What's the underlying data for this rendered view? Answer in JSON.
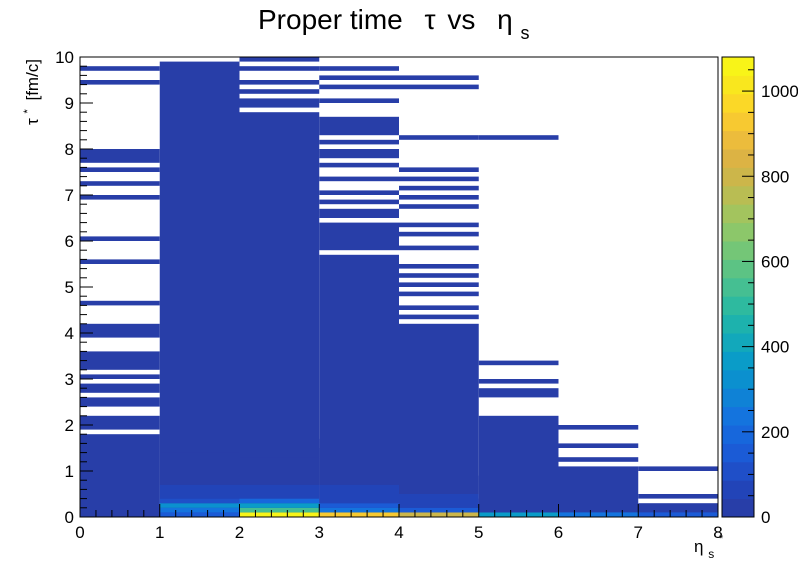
{
  "chart_data": {
    "type": "heatmap",
    "title": {
      "main": "Proper time",
      "tau": "τ",
      "vs": "vs",
      "eta": "η",
      "eta_sub": "s"
    },
    "xlabel": {
      "sym": "η",
      "sub": "s",
      "sup": "*"
    },
    "ylabel": {
      "sym": "τ",
      "sup": "*",
      "unit": "[fm/c]"
    },
    "xlim": [
      0,
      8
    ],
    "ylim": [
      0,
      10
    ],
    "x_ticks": [
      "0",
      "1",
      "2",
      "3",
      "4",
      "5",
      "6",
      "7",
      "8"
    ],
    "y_ticks": [
      "0",
      "1",
      "2",
      "3",
      "4",
      "5",
      "6",
      "7",
      "8",
      "9",
      "10"
    ],
    "x_bin_width": 1,
    "y_bin_width": 0.1,
    "colorbar": {
      "min": 0,
      "max": 1080,
      "ticks": [
        "0",
        "200",
        "400",
        "600",
        "800",
        "1000"
      ],
      "palette": [
        "#283ea8",
        "#2244b8",
        "#1f4fc8",
        "#1b5bd6",
        "#1767dc",
        "#1474de",
        "#0f82d6",
        "#0b90cf",
        "#0a9cc8",
        "#12a8bb",
        "#1db2ad",
        "#2eba9f",
        "#45bf92",
        "#5cc384",
        "#74c677",
        "#8cc76a",
        "#a3c45e",
        "#b9bd53",
        "#ccb64a",
        "#dcb344",
        "#ecbc3c",
        "#f7c931",
        "#fbd827",
        "#f9e71e",
        "#f8f418"
      ]
    },
    "columns": [
      {
        "x0": 0,
        "x1": 1,
        "filled": [
          [
            0,
            1.8
          ],
          [
            1.9,
            2.2
          ],
          [
            2.4,
            2.6
          ],
          [
            2.7,
            2.9
          ],
          [
            3.0,
            3.1
          ],
          [
            3.2,
            3.6
          ],
          [
            3.9,
            4.2
          ],
          [
            4.6,
            4.7
          ],
          [
            5.5,
            5.6
          ],
          [
            6.0,
            6.1
          ],
          [
            6.9,
            7.0
          ],
          [
            7.2,
            7.3
          ],
          [
            7.5,
            7.6
          ],
          [
            7.7,
            8.0
          ],
          [
            9.4,
            9.5
          ],
          [
            9.7,
            9.8
          ]
        ],
        "hot": []
      },
      {
        "x0": 1,
        "x1": 2,
        "filled": [
          [
            0,
            9.9
          ]
        ],
        "hot": [
          [
            0.0,
            0.1,
            140
          ],
          [
            0.1,
            0.2,
            230
          ],
          [
            0.2,
            0.3,
            330
          ],
          [
            0.3,
            0.4,
            120
          ],
          [
            0.4,
            0.7,
            60
          ],
          [
            0.7,
            1.0,
            40
          ],
          [
            1.0,
            1.4,
            25
          ],
          [
            1.4,
            1.9,
            15
          ]
        ]
      },
      {
        "x0": 2,
        "x1": 3,
        "filled": [
          [
            0,
            8.8
          ],
          [
            8.9,
            9.1
          ],
          [
            9.2,
            9.3
          ],
          [
            9.4,
            9.5
          ],
          [
            9.7,
            9.8
          ],
          [
            9.9,
            10.0
          ]
        ],
        "hot": [
          [
            0.0,
            0.1,
            1080
          ],
          [
            0.1,
            0.2,
            560
          ],
          [
            0.2,
            0.3,
            350
          ],
          [
            0.3,
            0.4,
            200
          ],
          [
            0.4,
            0.7,
            80
          ],
          [
            0.7,
            1.1,
            40
          ],
          [
            1.1,
            1.3,
            25
          ],
          [
            1.3,
            1.7,
            15
          ]
        ]
      },
      {
        "x0": 3,
        "x1": 4,
        "filled": [
          [
            0,
            5.7
          ],
          [
            5.8,
            6.4
          ],
          [
            6.5,
            6.7
          ],
          [
            6.8,
            6.9
          ],
          [
            7.0,
            7.1
          ],
          [
            7.3,
            7.4
          ],
          [
            7.6,
            7.7
          ],
          [
            7.8,
            8.0
          ],
          [
            8.1,
            8.2
          ],
          [
            8.3,
            8.7
          ],
          [
            9.0,
            9.1
          ],
          [
            9.3,
            9.4
          ],
          [
            9.5,
            9.6
          ],
          [
            9.7,
            9.8
          ]
        ],
        "hot": [
          [
            0.0,
            0.1,
            950
          ],
          [
            0.1,
            0.2,
            220
          ],
          [
            0.2,
            0.3,
            150
          ],
          [
            0.3,
            0.7,
            60
          ],
          [
            0.7,
            1.5,
            25
          ]
        ]
      },
      {
        "x0": 4,
        "x1": 5,
        "filled": [
          [
            0,
            4.2
          ],
          [
            4.3,
            4.4
          ],
          [
            4.5,
            4.6
          ],
          [
            4.8,
            4.9
          ],
          [
            5.0,
            5.1
          ],
          [
            5.2,
            5.3
          ],
          [
            5.4,
            5.5
          ],
          [
            5.8,
            5.9
          ],
          [
            6.1,
            6.2
          ],
          [
            6.3,
            6.4
          ],
          [
            6.7,
            6.8
          ],
          [
            6.9,
            7.0
          ],
          [
            7.1,
            7.2
          ],
          [
            7.3,
            7.4
          ],
          [
            7.5,
            7.6
          ],
          [
            8.2,
            8.3
          ],
          [
            9.3,
            9.4
          ],
          [
            9.5,
            9.6
          ]
        ],
        "hot": [
          [
            0.0,
            0.1,
            780
          ],
          [
            0.1,
            0.2,
            150
          ],
          [
            0.2,
            0.5,
            60
          ],
          [
            0.5,
            0.9,
            25
          ]
        ]
      },
      {
        "x0": 5,
        "x1": 6,
        "filled": [
          [
            0,
            2.2
          ],
          [
            2.6,
            2.8
          ],
          [
            2.9,
            3.0
          ],
          [
            3.3,
            3.4
          ],
          [
            8.2,
            8.3
          ]
        ],
        "hot": [
          [
            0.0,
            0.1,
            380
          ],
          [
            0.1,
            0.4,
            40
          ]
        ]
      },
      {
        "x0": 6,
        "x1": 7,
        "filled": [
          [
            0,
            1.1
          ],
          [
            1.2,
            1.3
          ],
          [
            1.5,
            1.6
          ],
          [
            1.9,
            2.0
          ]
        ],
        "hot": [
          [
            0.0,
            0.1,
            230
          ]
        ]
      },
      {
        "x0": 7,
        "x1": 8,
        "filled": [
          [
            0,
            0.3
          ],
          [
            0.4,
            0.5
          ],
          [
            1.0,
            1.1
          ]
        ],
        "hot": [
          [
            0.0,
            0.1,
            160
          ]
        ]
      }
    ]
  }
}
